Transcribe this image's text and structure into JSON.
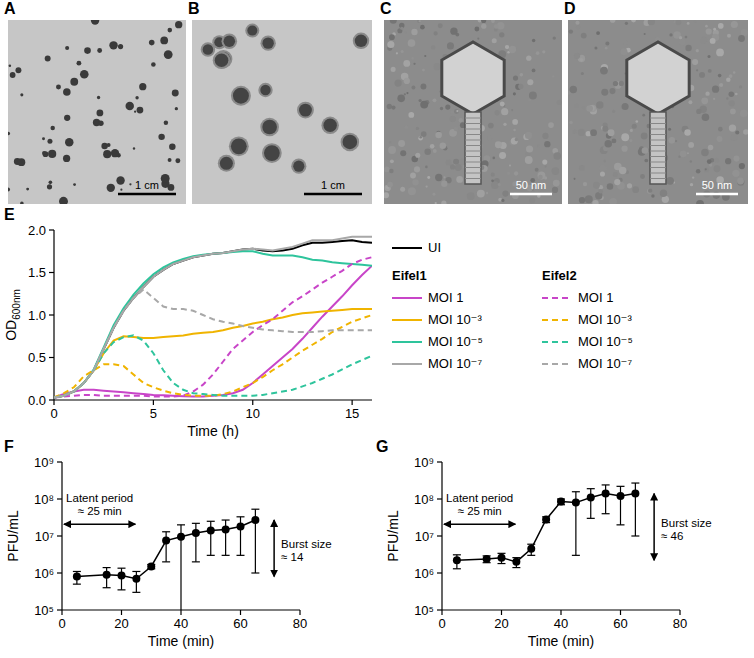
{
  "images": [
    {
      "panel_label": "A",
      "type": "plaque_photo",
      "scale_bar": "1 cm"
    },
    {
      "panel_label": "B",
      "type": "large_plaque_photo",
      "scale_bar": "1 cm"
    },
    {
      "panel_label": "C",
      "type": "tem_photo",
      "scale_bar": "50 nm"
    },
    {
      "panel_label": "D",
      "type": "tem_photo",
      "scale_bar": "50 nm"
    }
  ],
  "chart_data": [
    {
      "type": "line",
      "panel_label": "E",
      "x_label": "Time (h)",
      "y_label": "OD",
      "y_label_sub": "600nm",
      "x": [
        0,
        0.5,
        1,
        1.5,
        2,
        2.5,
        3,
        3.5,
        4,
        4.5,
        5,
        5.5,
        6,
        6.5,
        7,
        7.5,
        8,
        8.5,
        9,
        9.5,
        10,
        10.5,
        11,
        11.5,
        12,
        12.5,
        13,
        13.5,
        14,
        14.5,
        15,
        15.5,
        16
      ],
      "xlim": [
        0,
        16
      ],
      "xticks": [
        0,
        5,
        10,
        15
      ],
      "ylim": [
        0,
        2
      ],
      "yticks": [
        {
          "value": 0,
          "label": "0.0"
        },
        {
          "value": 0.5,
          "label": "0.5"
        },
        {
          "value": 1,
          "label": "1.0"
        },
        {
          "value": 1.5,
          "label": "1.5"
        },
        {
          "value": 2,
          "label": "2.0"
        }
      ],
      "legend": "right",
      "groups": [
        "Eifel1",
        "Eifel2"
      ],
      "series": [
        {
          "name": "UI",
          "color": "#000000",
          "line_style": "solid",
          "values": [
            0.03,
            0.05,
            0.1,
            0.2,
            0.35,
            0.6,
            0.85,
            1.05,
            1.2,
            1.33,
            1.45,
            1.53,
            1.6,
            1.64,
            1.68,
            1.7,
            1.72,
            1.73,
            1.75,
            1.77,
            1.78,
            1.76,
            1.75,
            1.76,
            1.78,
            1.82,
            1.85,
            1.85,
            1.86,
            1.87,
            1.88,
            1.86,
            1.85
          ]
        },
        {
          "name": "MOI 1",
          "group": "Eifel1",
          "color": "#c845c8",
          "line_style": "solid",
          "values": [
            0.03,
            0.07,
            0.1,
            0.12,
            0.12,
            0.11,
            0.1,
            0.09,
            0.08,
            0.07,
            0.06,
            0.055,
            0.05,
            0.045,
            0.04,
            0.04,
            0.05,
            0.06,
            0.08,
            0.12,
            0.2,
            0.3,
            0.4,
            0.5,
            0.6,
            0.72,
            0.85,
            0.98,
            1.1,
            1.22,
            1.35,
            1.47,
            1.58
          ]
        },
        {
          "name": "MOI 10⁻³",
          "group": "Eifel1",
          "color": "#f0b400",
          "line_style": "solid",
          "values": [
            0.03,
            0.05,
            0.1,
            0.2,
            0.35,
            0.55,
            0.7,
            0.75,
            0.74,
            0.73,
            0.73,
            0.74,
            0.75,
            0.76,
            0.78,
            0.79,
            0.8,
            0.82,
            0.85,
            0.87,
            0.9,
            0.92,
            0.95,
            0.97,
            1.0,
            1.02,
            1.03,
            1.04,
            1.05,
            1.06,
            1.07,
            1.07,
            1.07
          ]
        },
        {
          "name": "MOI 10⁻⁵",
          "group": "Eifel1",
          "color": "#2ec49c",
          "line_style": "solid",
          "values": [
            0.03,
            0.05,
            0.1,
            0.2,
            0.36,
            0.62,
            0.88,
            1.08,
            1.24,
            1.37,
            1.48,
            1.56,
            1.62,
            1.66,
            1.69,
            1.71,
            1.72,
            1.73,
            1.74,
            1.75,
            1.75,
            1.72,
            1.7,
            1.7,
            1.7,
            1.68,
            1.65,
            1.64,
            1.62,
            1.61,
            1.6,
            1.59,
            1.58
          ]
        },
        {
          "name": "MOI 10⁻⁷",
          "group": "Eifel1",
          "color": "#a8a8a8",
          "line_style": "solid",
          "values": [
            0.03,
            0.05,
            0.1,
            0.2,
            0.35,
            0.6,
            0.85,
            1.05,
            1.2,
            1.33,
            1.45,
            1.53,
            1.6,
            1.64,
            1.68,
            1.7,
            1.72,
            1.73,
            1.75,
            1.77,
            1.78,
            1.77,
            1.76,
            1.78,
            1.8,
            1.84,
            1.88,
            1.88,
            1.88,
            1.9,
            1.92,
            1.92,
            1.92
          ]
        },
        {
          "name": "MOI 1",
          "group": "Eifel2",
          "color": "#c845c8",
          "line_style": "dashed",
          "values": [
            0.03,
            0.04,
            0.05,
            0.06,
            0.06,
            0.05,
            0.05,
            0.05,
            0.05,
            0.05,
            0.04,
            0.04,
            0.04,
            0.05,
            0.1,
            0.18,
            0.3,
            0.45,
            0.6,
            0.7,
            0.8,
            0.88,
            0.95,
            1.05,
            1.15,
            1.22,
            1.3,
            1.38,
            1.45,
            1.52,
            1.6,
            1.65,
            1.68
          ]
        },
        {
          "name": "MOI 10⁻³",
          "group": "Eifel2",
          "color": "#f0b400",
          "line_style": "dashed",
          "values": [
            0.03,
            0.08,
            0.15,
            0.28,
            0.35,
            0.42,
            0.42,
            0.4,
            0.3,
            0.2,
            0.15,
            0.11,
            0.08,
            0.06,
            0.05,
            0.05,
            0.05,
            0.07,
            0.1,
            0.15,
            0.2,
            0.27,
            0.35,
            0.42,
            0.5,
            0.58,
            0.65,
            0.72,
            0.8,
            0.86,
            0.92,
            0.96,
            1.0
          ]
        },
        {
          "name": "MOI 10⁻⁵",
          "group": "Eifel2",
          "color": "#2ec49c",
          "line_style": "dashed",
          "values": [
            0.03,
            0.05,
            0.1,
            0.2,
            0.35,
            0.55,
            0.68,
            0.74,
            0.76,
            0.7,
            0.55,
            0.35,
            0.2,
            0.12,
            0.08,
            0.07,
            0.06,
            0.05,
            0.05,
            0.05,
            0.05,
            0.06,
            0.08,
            0.1,
            0.12,
            0.16,
            0.2,
            0.25,
            0.3,
            0.36,
            0.42,
            0.47,
            0.52
          ]
        },
        {
          "name": "MOI 10⁻⁷",
          "group": "Eifel2",
          "color": "#a8a8a8",
          "line_style": "dashed",
          "values": [
            0.03,
            0.05,
            0.1,
            0.2,
            0.35,
            0.6,
            0.85,
            1.05,
            1.2,
            1.3,
            1.2,
            1.1,
            1.07,
            1.07,
            1.05,
            1.0,
            0.95,
            0.92,
            0.9,
            0.87,
            0.85,
            0.83,
            0.82,
            0.81,
            0.8,
            0.8,
            0.8,
            0.81,
            0.82,
            0.82,
            0.82,
            0.82,
            0.82
          ]
        }
      ]
    },
    {
      "type": "line",
      "panel_label": "F",
      "x_label": "Time (min)",
      "y_label": "PFU/mL",
      "log": "y",
      "marker": "circle",
      "color": "#000000",
      "x": [
        5,
        15,
        20,
        25,
        30,
        35,
        40,
        45,
        50,
        55,
        60,
        65
      ],
      "values": [
        800000,
        900000,
        850000,
        700000,
        1500000,
        7500000,
        9500000,
        12000000,
        14000000,
        15000000,
        18000000,
        27000000
      ],
      "errors": [
        300000,
        500000,
        500000,
        400000,
        200000,
        5500000,
        10500000,
        10000000,
        11000000,
        12000000,
        15000000,
        26000000
      ],
      "xlim": [
        0,
        80
      ],
      "xticks": [
        0,
        20,
        40,
        60,
        80
      ],
      "ylim": [
        100000,
        1000000000
      ],
      "yticks": [
        {
          "value": 100000,
          "label": "10⁵"
        },
        {
          "value": 1000000,
          "label": "10⁶"
        },
        {
          "value": 10000000,
          "label": "10⁷"
        },
        {
          "value": 100000000,
          "label": "10⁸"
        },
        {
          "value": 1000000000,
          "label": "10⁹"
        }
      ],
      "latent_period": 25,
      "latent_label": [
        "Latent period",
        "≈ 25 min"
      ],
      "burst_label": [
        "Burst size",
        "≈ 14"
      ]
    },
    {
      "type": "line",
      "panel_label": "G",
      "x_label": "Time (min)",
      "y_label": "PFU/mL",
      "log": "y",
      "marker": "circle",
      "color": "#000000",
      "x": [
        5,
        15,
        20,
        25,
        30,
        35,
        40,
        45,
        50,
        55,
        60,
        65
      ],
      "values": [
        2200000,
        2400000,
        2600000,
        2000000,
        4500000,
        28000000,
        85000000,
        80000000,
        110000000,
        140000000,
        120000000,
        140000000
      ],
      "errors": [
        900000,
        500000,
        800000,
        600000,
        1500000,
        5000000,
        15000000,
        77000000,
        80000000,
        100000000,
        100000000,
        130000000
      ],
      "xlim": [
        0,
        80
      ],
      "xticks": [
        0,
        20,
        40,
        60,
        80
      ],
      "ylim": [
        100000,
        1000000000
      ],
      "yticks": [
        {
          "value": 100000,
          "label": "10⁵"
        },
        {
          "value": 1000000,
          "label": "10⁶"
        },
        {
          "value": 10000000,
          "label": "10⁷"
        },
        {
          "value": 100000000,
          "label": "10⁸"
        },
        {
          "value": 1000000000,
          "label": "10⁹"
        }
      ],
      "latent_period": 25,
      "latent_label": [
        "Latent period",
        "≈ 25 min"
      ],
      "burst_label": [
        "Burst size",
        "≈ 46"
      ]
    }
  ]
}
